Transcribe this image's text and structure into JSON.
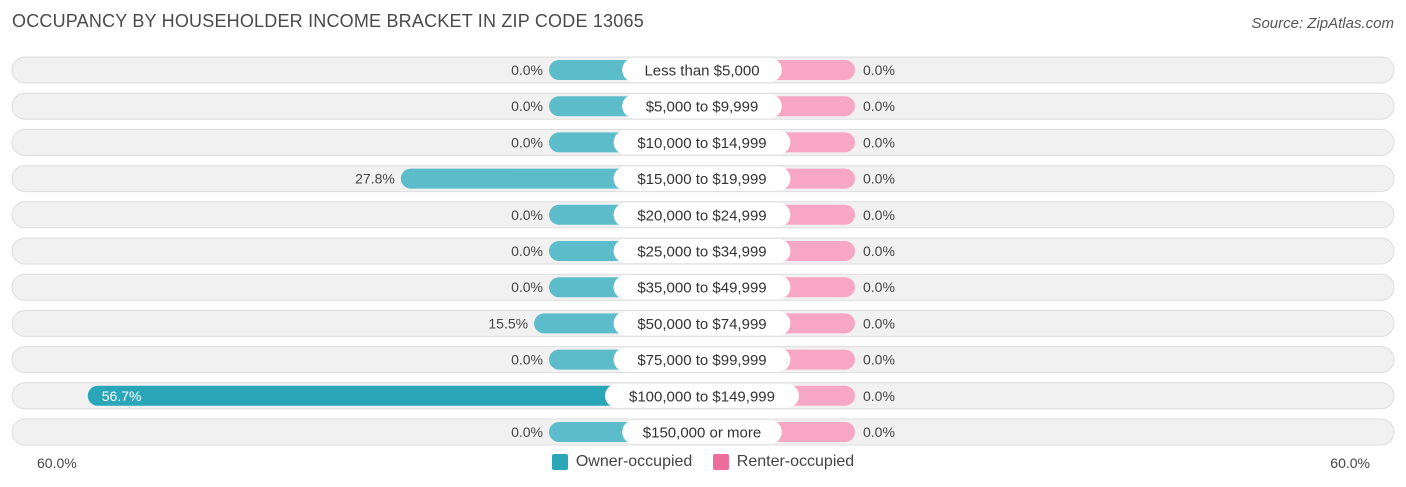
{
  "title": "OCCUPANCY BY HOUSEHOLDER INCOME BRACKET IN ZIP CODE 13065",
  "source": "Source: ZipAtlas.com",
  "colors": {
    "owner": "#5cbcc9",
    "owner_strong": "#2aa6b8",
    "renter": "#f7a7c3",
    "renter_strong": "#ef6d9a",
    "row_bg": "#f1f1f1",
    "row_border": "#dddddd"
  },
  "chart_data": {
    "type": "bar",
    "orientation": "horizontal-diverging",
    "categories": [
      "Less than $5,000",
      "$5,000 to $9,999",
      "$10,000 to $14,999",
      "$15,000 to $19,999",
      "$20,000 to $24,999",
      "$25,000 to $34,999",
      "$35,000 to $49,999",
      "$50,000 to $74,999",
      "$75,000 to $99,999",
      "$100,000 to $149,999",
      "$150,000 or more"
    ],
    "series": [
      {
        "name": "Owner-occupied",
        "values": [
          0.0,
          0.0,
          0.0,
          27.8,
          0.0,
          0.0,
          0.0,
          15.5,
          0.0,
          56.7,
          0.0
        ],
        "labels": [
          "0.0%",
          "0.0%",
          "0.0%",
          "27.8%",
          "0.0%",
          "0.0%",
          "0.0%",
          "15.5%",
          "0.0%",
          "56.7%",
          "0.0%"
        ]
      },
      {
        "name": "Renter-occupied",
        "values": [
          0.0,
          0.0,
          0.0,
          0.0,
          0.0,
          0.0,
          0.0,
          0.0,
          0.0,
          0.0,
          0.0
        ],
        "labels": [
          "0.0%",
          "0.0%",
          "0.0%",
          "0.0%",
          "0.0%",
          "0.0%",
          "0.0%",
          "0.0%",
          "0.0%",
          "0.0%",
          "0.0%"
        ]
      }
    ],
    "xlim": [
      -60,
      60
    ],
    "axis_left_label": "60.0%",
    "axis_right_label": "60.0%",
    "legend_position": "bottom-center"
  }
}
